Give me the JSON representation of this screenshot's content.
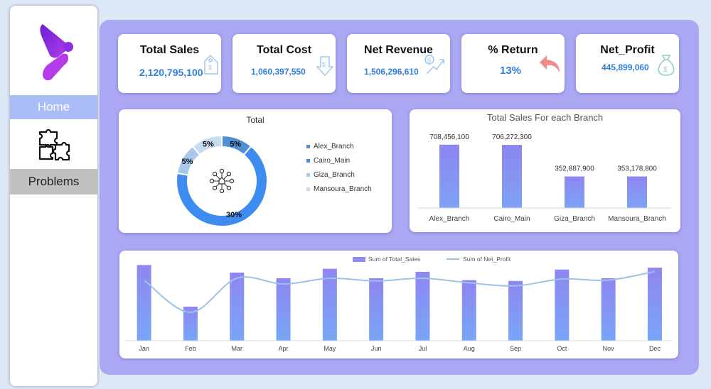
{
  "sidebar": {
    "items": [
      {
        "label": "Home"
      },
      {
        "label": "Problems"
      }
    ]
  },
  "kpis": [
    {
      "title": "Total Sales",
      "value": "2,120,795,100",
      "icon": "sales-tag-icon"
    },
    {
      "title": "Total Cost",
      "value": "1,060,397,550",
      "icon": "cost-down-icon"
    },
    {
      "title": "Net Revenue",
      "value": "1,506,296,610",
      "icon": "revenue-growth-icon"
    },
    {
      "title": "% Return",
      "value": "13%",
      "icon": "return-arrow-icon"
    },
    {
      "title": "Net_Profit",
      "value": "445,899,060",
      "icon": "money-bag-icon"
    }
  ],
  "colors": {
    "accent": "#2f7ee0",
    "panel": "#aba7f3",
    "bar": "#8f8cf0",
    "line": "#9cc3e6",
    "donut": [
      "#4e8fd6",
      "#3f8cf0",
      "#a8c8ec",
      "#c7dbf3"
    ]
  },
  "chart_data": [
    {
      "type": "pie",
      "title": "Total",
      "labels": [
        "Alex_Branch",
        "Cairo_Main",
        "Giza_Branch",
        "Mansoura_Branch"
      ],
      "values": [
        5,
        30,
        5,
        5
      ],
      "data_labels": [
        "5%",
        "30%",
        "5%",
        "5%"
      ]
    },
    {
      "type": "bar",
      "title": "Total Sales For each Branch",
      "categories": [
        "Alex_Branch",
        "Cairo_Main",
        "Giza_Branch",
        "Mansoura_Branch"
      ],
      "values": [
        708456100,
        706272300,
        352887900,
        353178800
      ],
      "data_labels": [
        "708,456,100",
        "706,272,300",
        "352,887,900",
        "353,178,800"
      ],
      "ylim": [
        0,
        800000000
      ]
    },
    {
      "type": "bar",
      "categories": [
        "Jan",
        "Feb",
        "Mar",
        "Apr",
        "May",
        "Jun",
        "Jul",
        "Aug",
        "Sep",
        "Oct",
        "Nov",
        "Dec"
      ],
      "series": [
        {
          "name": "Sum of Total_Sales",
          "type": "bar",
          "values": [
            200,
            90,
            180,
            165,
            190,
            165,
            182,
            160,
            158,
            188,
            165,
            193
          ]
        },
        {
          "name": "Sum of Net_Profit",
          "type": "line",
          "values": [
            160,
            75,
            165,
            150,
            165,
            158,
            165,
            153,
            145,
            163,
            160,
            183
          ]
        }
      ],
      "ylim": [
        0,
        210
      ],
      "legend": "top"
    }
  ]
}
